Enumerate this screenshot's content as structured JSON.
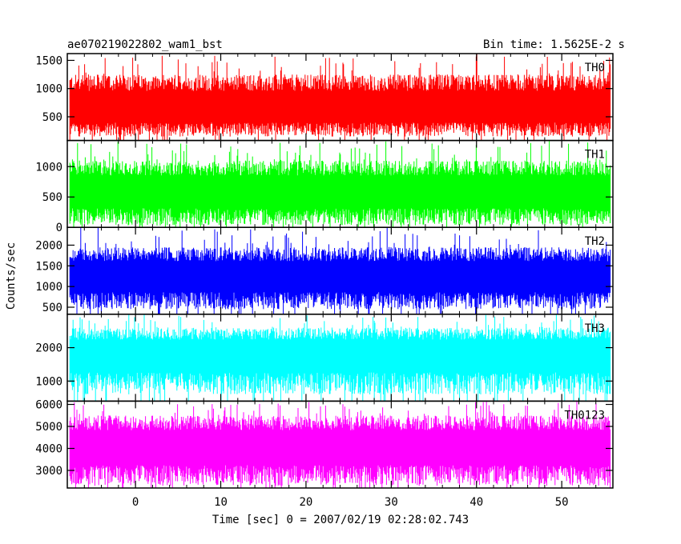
{
  "chart_data": {
    "type": "line",
    "title_left": "ae070219022802_wam1_bst",
    "title_right": "Bin time: 1.5625E-2 s",
    "xlabel": "Time [sec] 0 = 2007/02/19 02:28:02.743",
    "ylabel": "Counts/sec",
    "xlim": [
      -8,
      56
    ],
    "data_xrange": [
      -7.7,
      55.7
    ],
    "x_ticks": [
      0,
      10,
      20,
      30,
      40,
      50
    ],
    "grid": false,
    "panels": [
      {
        "name": "TH0",
        "color": "#ff0000",
        "ylim": [
          80,
          1620
        ],
        "y_ticks": [
          500,
          1000,
          1500
        ],
        "baseline": 600,
        "low": 150,
        "high": 1620,
        "typ_high": 1250
      },
      {
        "name": "TH1",
        "color": "#00ff00",
        "ylim": [
          0,
          1430
        ],
        "y_ticks": [
          0,
          500,
          1000
        ],
        "baseline": 550,
        "low": 30,
        "high": 1430,
        "typ_high": 1100
      },
      {
        "name": "TH2",
        "color": "#0000ff",
        "ylim": [
          330,
          2430
        ],
        "y_ticks": [
          500,
          1000,
          1500,
          2000
        ],
        "baseline": 1200,
        "low": 450,
        "high": 2430,
        "typ_high": 1950
      },
      {
        "name": "TH3",
        "color": "#00ffff",
        "ylim": [
          400,
          3000
        ],
        "y_ticks": [
          1000,
          2000
        ],
        "baseline": 1800,
        "low": 600,
        "high": 3000,
        "typ_high": 2600
      },
      {
        "name": "TH0123",
        "color": "#ff00ff",
        "ylim": [
          2200,
          6150
        ],
        "y_ticks": [
          3000,
          4000,
          5000,
          6000
        ],
        "baseline": 4000,
        "low": 2300,
        "high": 6150,
        "typ_high": 5500
      }
    ]
  }
}
